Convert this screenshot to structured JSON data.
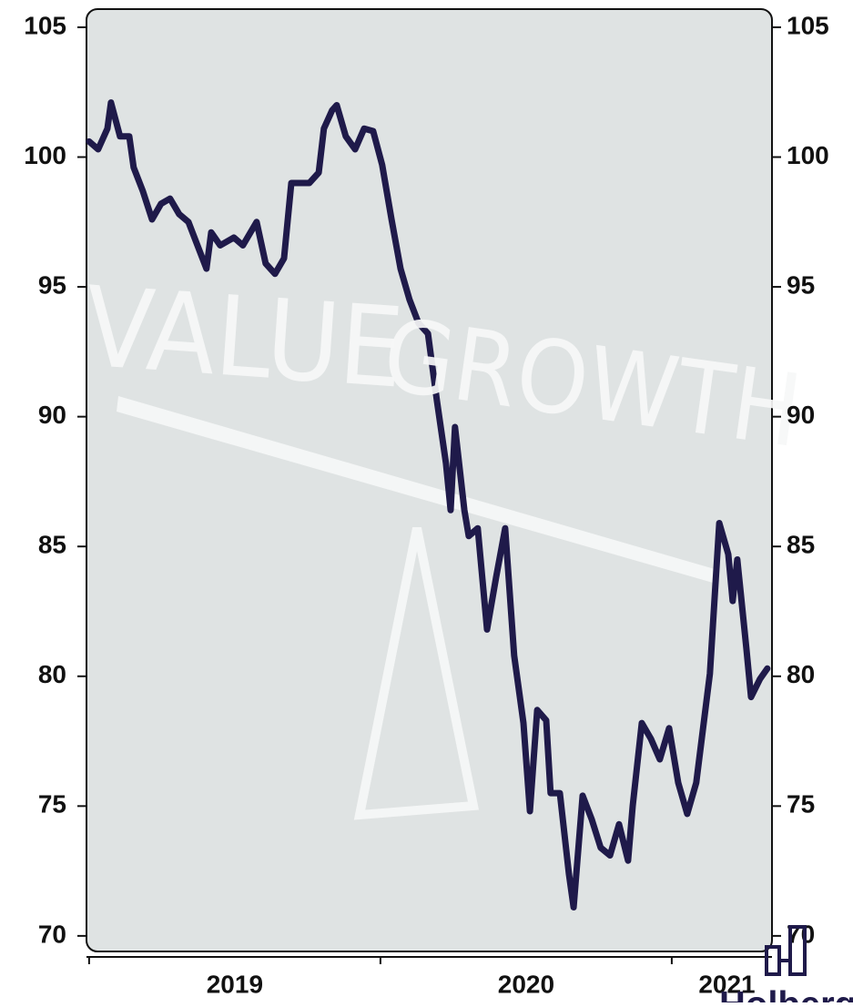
{
  "chart_data": {
    "type": "line",
    "annotations": [
      "VALUE",
      "GROWTH"
    ],
    "logo": "Holberg",
    "x": [
      2019.0,
      2019.031,
      2019.063,
      2019.075,
      2019.106,
      2019.138,
      2019.153,
      2019.184,
      2019.216,
      2019.247,
      2019.278,
      2019.309,
      2019.341,
      2019.372,
      2019.403,
      2019.419,
      2019.45,
      2019.497,
      2019.528,
      2019.575,
      2019.606,
      2019.638,
      2019.669,
      2019.694,
      2019.725,
      2019.756,
      2019.788,
      2019.806,
      2019.834,
      2019.85,
      2019.881,
      2019.913,
      2019.944,
      2019.975,
      2020.006,
      2020.038,
      2020.069,
      2020.1,
      2020.131,
      2020.163,
      2020.194,
      2020.225,
      2020.241,
      2020.256,
      2020.288,
      2020.303,
      2020.334,
      2020.366,
      2020.397,
      2020.428,
      2020.459,
      2020.491,
      2020.513,
      2020.538,
      2020.569,
      2020.584,
      2020.616,
      2020.647,
      2020.663,
      2020.694,
      2020.725,
      2020.756,
      2020.788,
      2020.819,
      2020.85,
      2020.866,
      2020.897,
      2020.928,
      2020.959,
      2020.991,
      2021.022,
      2021.053,
      2021.084,
      2021.131,
      2021.163,
      2021.194,
      2021.209,
      2021.225,
      2021.256,
      2021.272,
      2021.303,
      2021.328
    ],
    "series": [
      {
        "color": "#1f1a4a",
        "values": [
          100.6,
          100.3,
          101.1,
          102.1,
          100.8,
          100.8,
          99.6,
          98.7,
          97.6,
          98.2,
          98.4,
          97.8,
          97.5,
          96.6,
          95.7,
          97.1,
          96.6,
          96.9,
          96.6,
          97.5,
          95.9,
          95.5,
          96.1,
          99.0,
          99.0,
          99.0,
          99.4,
          101.1,
          101.8,
          102.0,
          100.8,
          100.3,
          101.1,
          101.0,
          99.7,
          97.6,
          95.7,
          94.5,
          93.6,
          93.2,
          90.6,
          88.2,
          86.4,
          89.6,
          86.4,
          85.4,
          85.7,
          81.8,
          83.8,
          85.7,
          80.8,
          78.2,
          74.8,
          78.7,
          78.3,
          75.5,
          75.5,
          72.4,
          71.1,
          75.4,
          74.5,
          73.4,
          73.1,
          74.3,
          72.9,
          75.0,
          78.2,
          77.6,
          76.8,
          78.0,
          75.9,
          74.7,
          75.9,
          80.1,
          85.9,
          84.7,
          82.9,
          84.5,
          81.1,
          79.2,
          79.9,
          80.3
        ]
      }
    ],
    "xlim": [
      2018.991,
      2021.344
    ],
    "xticks": [
      2019,
      2020,
      2021
    ],
    "ylim": [
      69.4,
      105.7
    ],
    "yticks": [
      70,
      75,
      80,
      85,
      90,
      95,
      100,
      105
    ],
    "y2lim": [
      69.4,
      105.7
    ],
    "y2ticks": [
      70,
      75,
      80,
      85,
      90,
      95,
      100,
      105
    ]
  }
}
